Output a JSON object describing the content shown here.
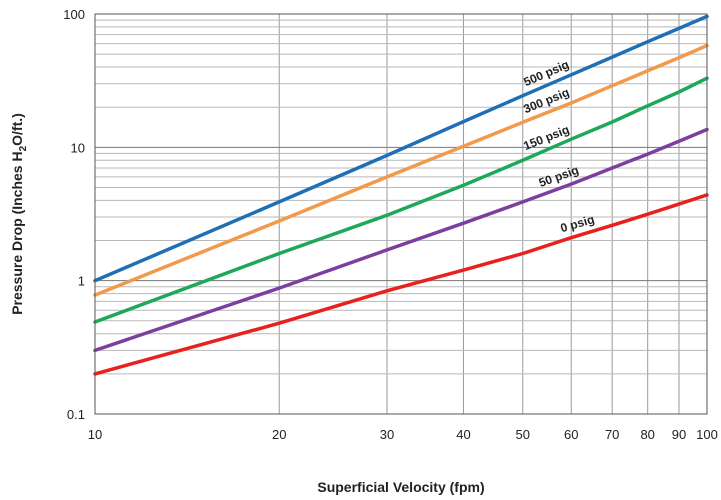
{
  "chart_data": {
    "type": "line",
    "title": "",
    "xlabel": "Superficial Velocity (fpm)",
    "ylabel_parts": [
      "Pressure Drop (Inches H",
      "2",
      "O/ft.)"
    ],
    "xscale": "log",
    "yscale": "log",
    "xlim": [
      10,
      100
    ],
    "ylim": [
      0.1,
      100
    ],
    "grid": true,
    "legend": "inline labels",
    "x_ticks": [
      10,
      20,
      30,
      40,
      50,
      60,
      70,
      80,
      90,
      100
    ],
    "x_tick_labels": [
      "10",
      "20",
      "30",
      "40",
      "50",
      "60",
      "70",
      "80",
      "90",
      "100"
    ],
    "y_ticks": [
      0.1,
      1,
      10,
      100
    ],
    "y_tick_labels": [
      "0.1",
      "1",
      "10",
      "100"
    ],
    "series": [
      {
        "name": "500 psig",
        "color": "#1f6fb5",
        "x": [
          10,
          20,
          30,
          40,
          50,
          60,
          70,
          80,
          90,
          100
        ],
        "y": [
          1.0,
          3.9,
          8.7,
          15.6,
          24.4,
          35,
          47.5,
          62,
          78,
          96
        ]
      },
      {
        "name": "300 psig",
        "color": "#f2994a",
        "x": [
          10,
          20,
          30,
          40,
          50,
          60,
          70,
          80,
          90,
          100
        ],
        "y": [
          0.78,
          2.8,
          6.0,
          10.2,
          15.4,
          21.5,
          29,
          37.5,
          47,
          58
        ]
      },
      {
        "name": "150 psig",
        "color": "#1ea85a",
        "x": [
          10,
          20,
          30,
          40,
          50,
          60,
          70,
          80,
          90,
          100
        ],
        "y": [
          0.49,
          1.6,
          3.1,
          5.2,
          8.0,
          11.5,
          15.5,
          20.5,
          26,
          33
        ]
      },
      {
        "name": "50 psig",
        "color": "#7b3fa0",
        "x": [
          10,
          20,
          30,
          40,
          50,
          60,
          70,
          80,
          90,
          100
        ],
        "y": [
          0.3,
          0.88,
          1.7,
          2.7,
          3.9,
          5.3,
          7.0,
          8.9,
          11.1,
          13.6
        ]
      },
      {
        "name": "0 psig",
        "color": "#e8201e",
        "x": [
          10,
          20,
          30,
          40,
          50,
          60,
          70,
          80,
          90,
          100
        ],
        "y": [
          0.2,
          0.48,
          0.84,
          1.2,
          1.6,
          2.1,
          2.6,
          3.15,
          3.75,
          4.4
        ]
      }
    ]
  }
}
